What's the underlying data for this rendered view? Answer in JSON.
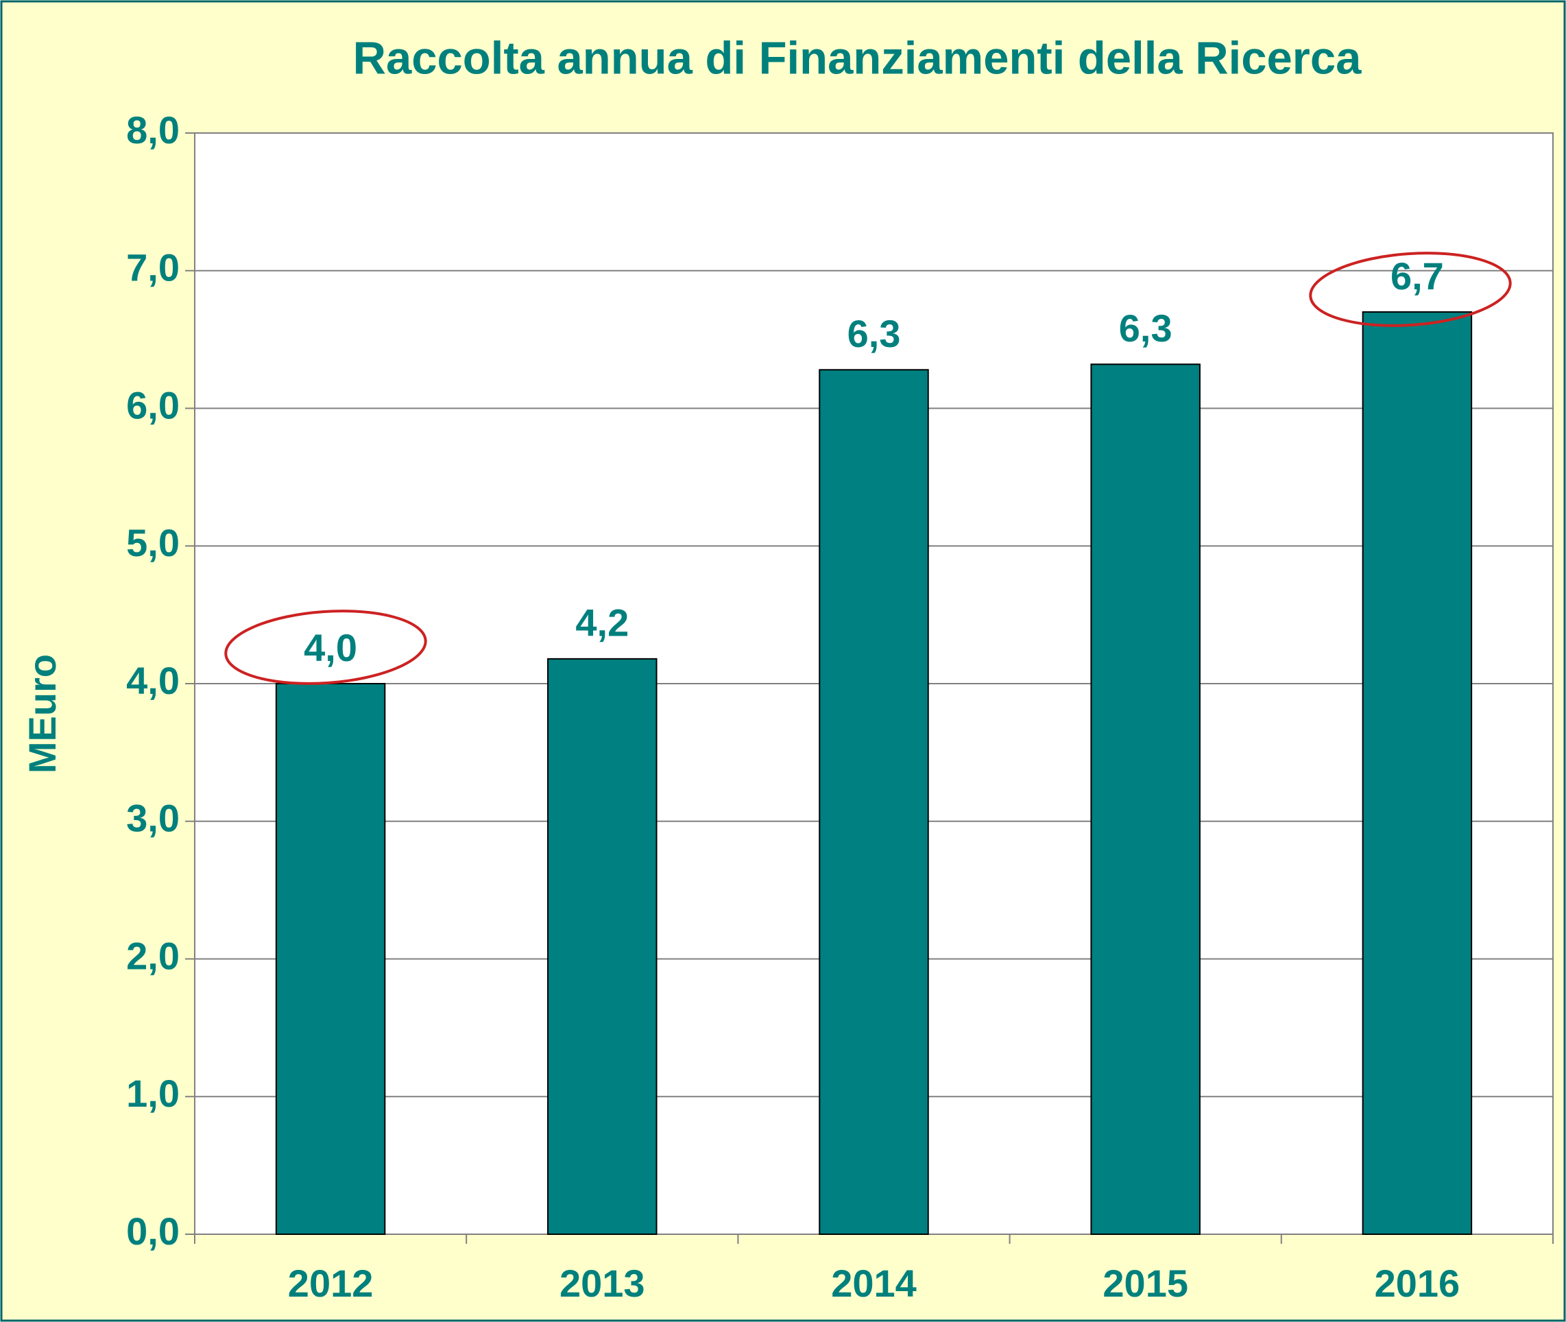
{
  "chart_data": {
    "type": "bar",
    "title": "Raccolta annua di Finanziamenti della Ricerca",
    "y_label": "MEuro",
    "categories": [
      "2012",
      "2013",
      "2014",
      "2015",
      "2016"
    ],
    "values": [
      4.0,
      4.18,
      6.28,
      6.32,
      6.7
    ],
    "value_labels": [
      "4,0",
      "4,2",
      "6,3",
      "6,3",
      "6,7"
    ],
    "color": "#008080",
    "ylim": [
      0,
      8
    ],
    "yticks": [
      {
        "value": 0,
        "label": "0,0"
      },
      {
        "value": 1,
        "label": "1,0"
      },
      {
        "value": 2,
        "label": "2,0"
      },
      {
        "value": 3,
        "label": "3,0"
      },
      {
        "value": 4,
        "label": "4,0"
      },
      {
        "value": 5,
        "label": "5,0"
      },
      {
        "value": 6,
        "label": "6,0"
      },
      {
        "value": 7,
        "label": "7,0"
      },
      {
        "value": 8,
        "label": "8,0"
      }
    ],
    "grid": true
  }
}
